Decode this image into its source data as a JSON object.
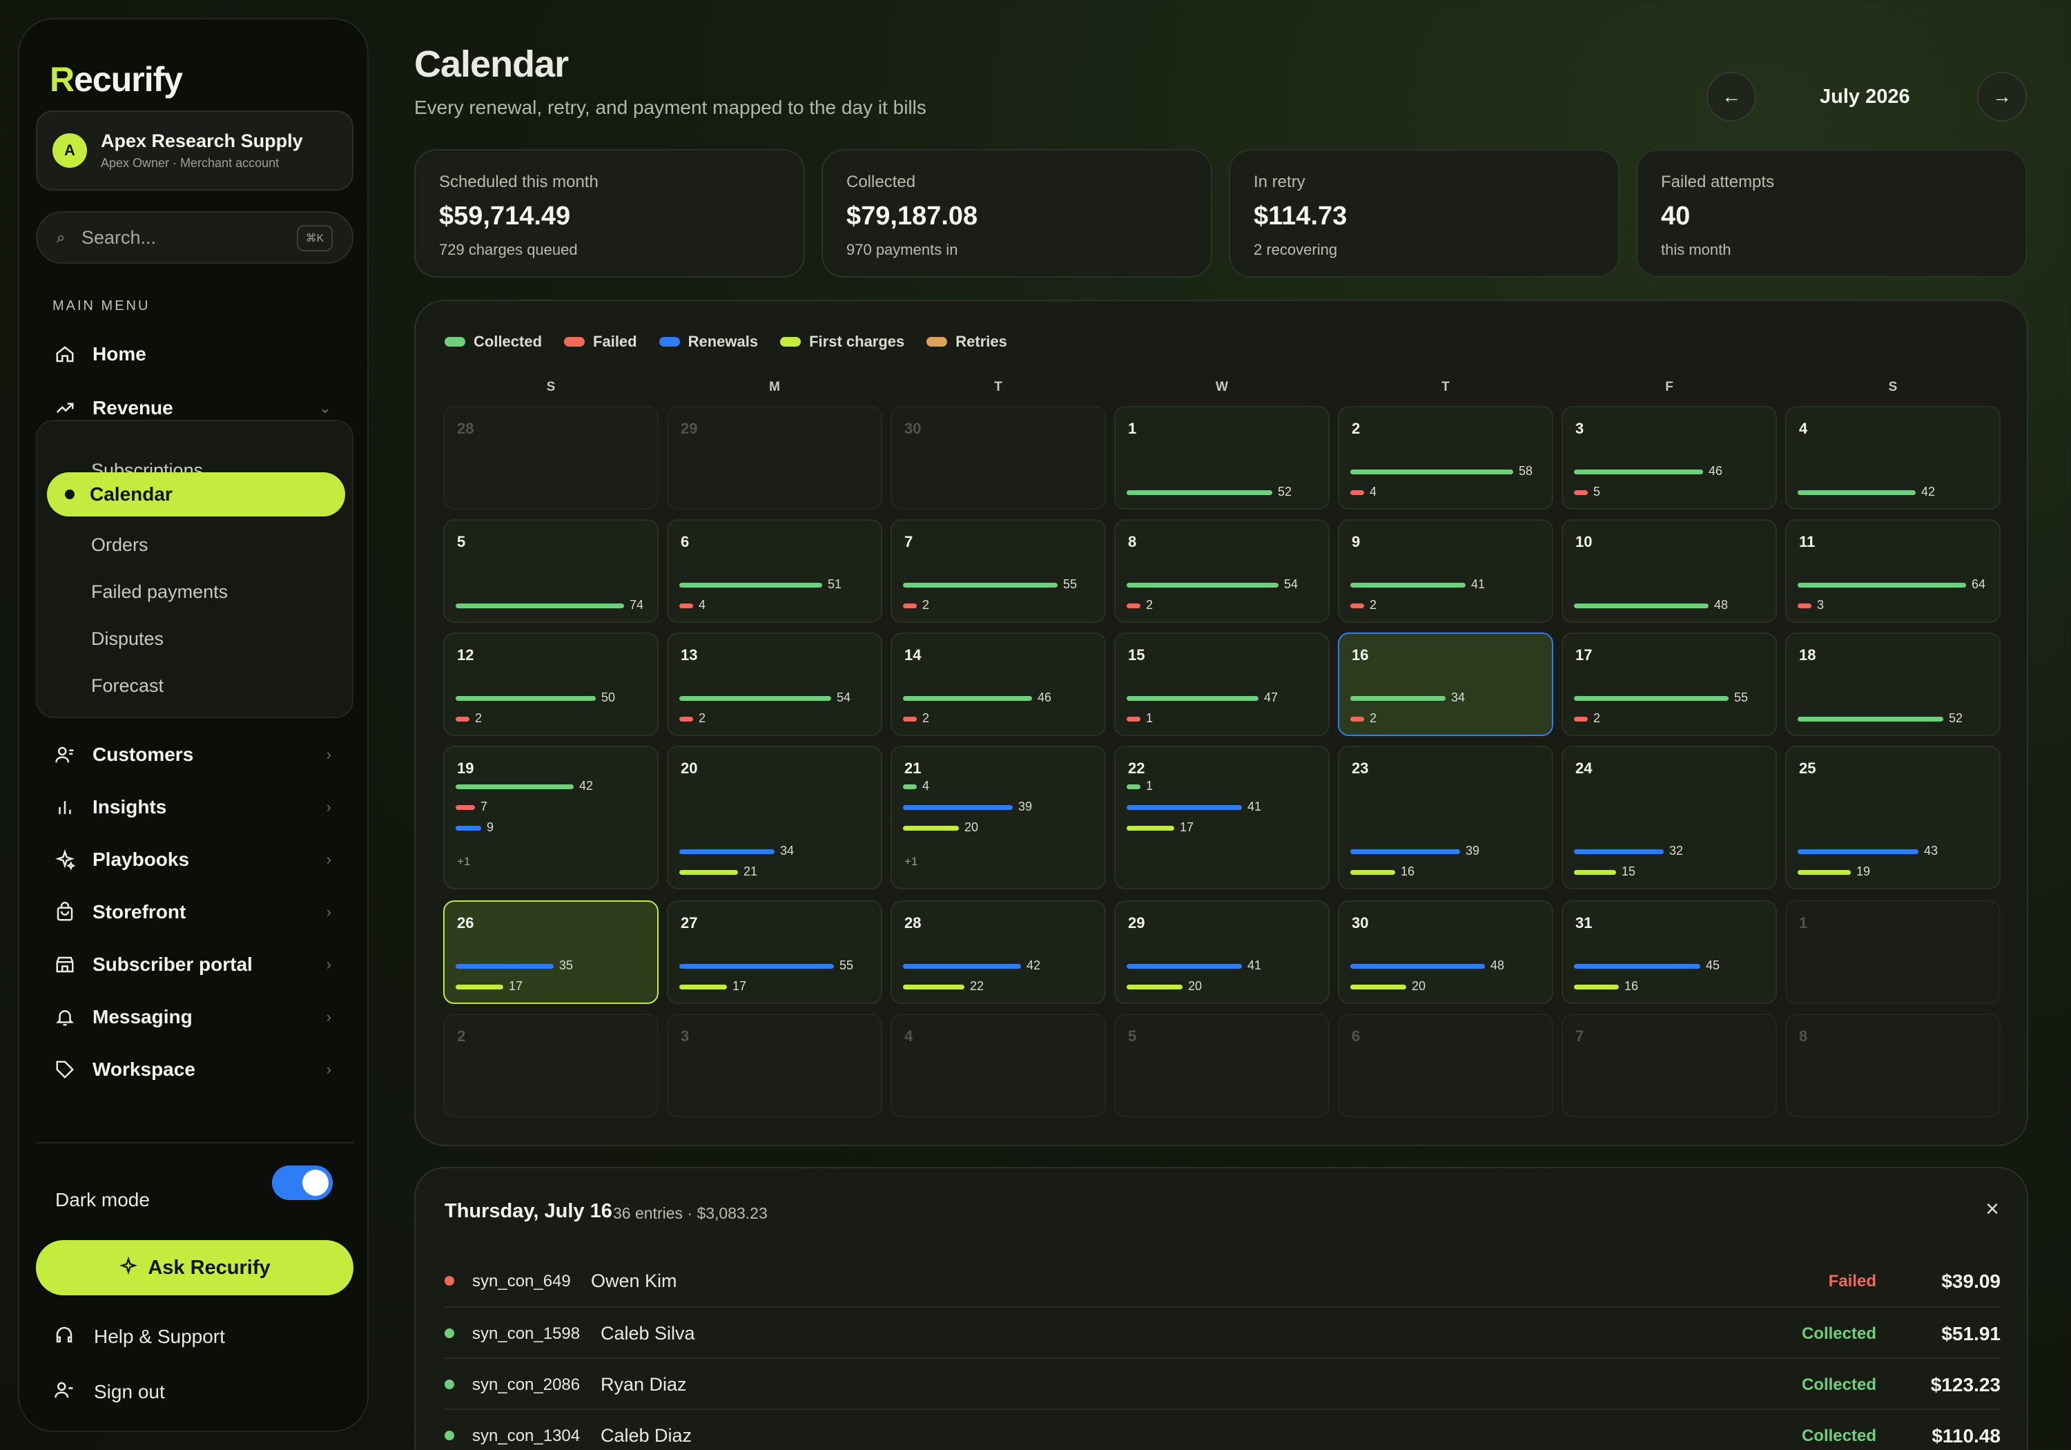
{
  "app": {
    "logo_r": "R",
    "logo_rest": "ecurify"
  },
  "account": {
    "initial": "A",
    "name": "Apex Research Supply",
    "role": "Apex Owner · Merchant account"
  },
  "search": {
    "placeholder": "Search...",
    "shortcut": "⌘K"
  },
  "sidebar": {
    "menu_title": "MAIN MENU",
    "home": "Home",
    "revenue": "Revenue",
    "revenue_sub": [
      "Subscriptions",
      "Calendar",
      "Orders",
      "Failed payments",
      "Disputes",
      "Forecast"
    ],
    "items": [
      "Customers",
      "Insights",
      "Playbooks",
      "Storefront",
      "Subscriber portal",
      "Messaging",
      "Workspace"
    ],
    "dark_mode": "Dark mode",
    "ask": "Ask Recurify",
    "help": "Help & Support",
    "sign_out": "Sign out"
  },
  "header": {
    "title": "Calendar",
    "subtitle": "Every renewal, retry, and payment mapped to the day it bills",
    "month": "July 2026"
  },
  "stats": [
    {
      "title": "Scheduled this month",
      "value": "$59,714.49",
      "sub": "729 charges queued"
    },
    {
      "title": "Collected",
      "value": "$79,187.08",
      "sub": "970 payments in"
    },
    {
      "title": "In retry",
      "value": "$114.73",
      "sub": "2 recovering"
    },
    {
      "title": "Failed attempts",
      "value": "40",
      "sub": "this month"
    }
  ],
  "legend": [
    {
      "label": "Collected",
      "color": "#6fcf7c"
    },
    {
      "label": "Failed",
      "color": "#ef6a5b"
    },
    {
      "label": "Renewals",
      "color": "#2f7df6"
    },
    {
      "label": "First charges",
      "color": "#c4ec3f"
    },
    {
      "label": "Retries",
      "color": "#d9a35b"
    }
  ],
  "weekdays": [
    "S",
    "M",
    "T",
    "W",
    "T",
    "F",
    "S"
  ],
  "weeks": [
    [
      {
        "d": "28",
        "out": true
      },
      {
        "d": "29",
        "out": true
      },
      {
        "d": "30",
        "out": true
      },
      {
        "d": "1",
        "bars": [
          [
            "collected",
            52
          ]
        ]
      },
      {
        "d": "2",
        "bars": [
          [
            "collected",
            58
          ],
          [
            "failed",
            4
          ]
        ]
      },
      {
        "d": "3",
        "bars": [
          [
            "collected",
            46
          ],
          [
            "failed",
            5
          ]
        ]
      },
      {
        "d": "4",
        "bars": [
          [
            "collected",
            42
          ]
        ]
      }
    ],
    [
      {
        "d": "5",
        "bars": [
          [
            "collected",
            74
          ]
        ]
      },
      {
        "d": "6",
        "bars": [
          [
            "collected",
            51
          ],
          [
            "failed",
            4
          ]
        ]
      },
      {
        "d": "7",
        "bars": [
          [
            "collected",
            55
          ],
          [
            "failed",
            2
          ]
        ]
      },
      {
        "d": "8",
        "bars": [
          [
            "collected",
            54
          ],
          [
            "failed",
            2
          ]
        ]
      },
      {
        "d": "9",
        "bars": [
          [
            "collected",
            41
          ],
          [
            "failed",
            2
          ]
        ]
      },
      {
        "d": "10",
        "bars": [
          [
            "collected",
            48
          ]
        ]
      },
      {
        "d": "11",
        "bars": [
          [
            "collected",
            64
          ],
          [
            "failed",
            3
          ]
        ]
      }
    ],
    [
      {
        "d": "12",
        "bars": [
          [
            "collected",
            50
          ],
          [
            "failed",
            2
          ]
        ]
      },
      {
        "d": "13",
        "bars": [
          [
            "collected",
            54
          ],
          [
            "failed",
            2
          ]
        ]
      },
      {
        "d": "14",
        "bars": [
          [
            "collected",
            46
          ],
          [
            "failed",
            2
          ]
        ]
      },
      {
        "d": "15",
        "bars": [
          [
            "collected",
            47
          ],
          [
            "failed",
            1
          ]
        ]
      },
      {
        "d": "16",
        "today": true,
        "bars": [
          [
            "collected",
            34
          ],
          [
            "failed",
            2
          ]
        ]
      },
      {
        "d": "17",
        "bars": [
          [
            "collected",
            55
          ],
          [
            "failed",
            2
          ]
        ]
      },
      {
        "d": "18",
        "bars": [
          [
            "collected",
            52
          ]
        ]
      }
    ],
    [
      {
        "d": "19",
        "more": "+1",
        "bars": [
          [
            "collected",
            42
          ],
          [
            "failed",
            7
          ],
          [
            "renewal",
            9
          ]
        ]
      },
      {
        "d": "20",
        "bars": [
          [
            "renewal",
            34
          ],
          [
            "first",
            21
          ]
        ]
      },
      {
        "d": "21",
        "more": "+1",
        "bars": [
          [
            "collected",
            4
          ],
          [
            "renewal",
            39
          ],
          [
            "first",
            20
          ]
        ]
      },
      {
        "d": "22",
        "bars": [
          [
            "collected",
            1
          ],
          [
            "renewal",
            41
          ],
          [
            "first",
            17
          ]
        ]
      },
      {
        "d": "23",
        "bars": [
          [
            "renewal",
            39
          ],
          [
            "first",
            16
          ]
        ]
      },
      {
        "d": "24",
        "bars": [
          [
            "renewal",
            32
          ],
          [
            "first",
            15
          ]
        ]
      },
      {
        "d": "25",
        "bars": [
          [
            "renewal",
            43
          ],
          [
            "first",
            19
          ]
        ]
      }
    ],
    [
      {
        "d": "26",
        "selected": true,
        "bars": [
          [
            "renewal",
            35
          ],
          [
            "first",
            17
          ]
        ]
      },
      {
        "d": "27",
        "bars": [
          [
            "renewal",
            55
          ],
          [
            "first",
            17
          ]
        ]
      },
      {
        "d": "28",
        "bars": [
          [
            "renewal",
            42
          ],
          [
            "first",
            22
          ]
        ]
      },
      {
        "d": "29",
        "bars": [
          [
            "renewal",
            41
          ],
          [
            "first",
            20
          ]
        ]
      },
      {
        "d": "30",
        "bars": [
          [
            "renewal",
            48
          ],
          [
            "first",
            20
          ]
        ]
      },
      {
        "d": "31",
        "bars": [
          [
            "renewal",
            45
          ],
          [
            "first",
            16
          ]
        ]
      },
      {
        "d": "1",
        "out": true
      }
    ],
    [
      {
        "d": "2",
        "out": true
      },
      {
        "d": "3",
        "out": true
      },
      {
        "d": "4",
        "out": true
      },
      {
        "d": "5",
        "out": true
      },
      {
        "d": "6",
        "out": true
      },
      {
        "d": "7",
        "out": true
      },
      {
        "d": "8",
        "out": true
      }
    ]
  ],
  "day_detail": {
    "title": "Thursday, July 16",
    "meta": "36 entries · $3,083.23",
    "close": "×",
    "rows": [
      {
        "id": "syn_con_649",
        "customer": "Owen Kim",
        "status": "Failed",
        "amount": "$39.09"
      },
      {
        "id": "syn_con_1598",
        "customer": "Caleb Silva",
        "status": "Collected",
        "amount": "$51.91"
      },
      {
        "id": "syn_con_2086",
        "customer": "Ryan Diaz",
        "status": "Collected",
        "amount": "$123.23"
      },
      {
        "id": "syn_con_1304",
        "customer": "Caleb Diaz",
        "status": "Collected",
        "amount": "$110.48"
      }
    ]
  },
  "colors": {
    "accent": "#c4ec3f",
    "collected": "#6fcf7c",
    "failed": "#ef6a5b",
    "renewal": "#2f7df6",
    "first": "#c4ec3f",
    "retry": "#d9a35b"
  },
  "icons": [
    "search-icon",
    "home-icon",
    "trend-icon",
    "users-icon",
    "bar-chart-icon",
    "sparkle-icon",
    "bag-icon",
    "store-icon",
    "bell-icon",
    "tag-icon",
    "headphones-icon",
    "user-icon",
    "arrow-left-icon",
    "arrow-right-icon",
    "close-icon"
  ]
}
